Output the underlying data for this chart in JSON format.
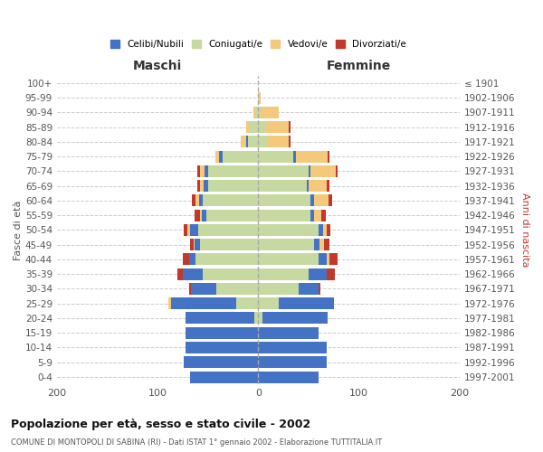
{
  "age_groups": [
    "0-4",
    "5-9",
    "10-14",
    "15-19",
    "20-24",
    "25-29",
    "30-34",
    "35-39",
    "40-44",
    "45-49",
    "50-54",
    "55-59",
    "60-64",
    "65-69",
    "70-74",
    "75-79",
    "80-84",
    "85-89",
    "90-94",
    "95-99",
    "100+"
  ],
  "birth_years": [
    "1997-2001",
    "1992-1996",
    "1987-1991",
    "1982-1986",
    "1977-1981",
    "1972-1976",
    "1967-1971",
    "1962-1966",
    "1957-1961",
    "1952-1956",
    "1947-1951",
    "1942-1946",
    "1937-1941",
    "1932-1936",
    "1927-1931",
    "1922-1926",
    "1917-1921",
    "1912-1916",
    "1907-1911",
    "1902-1906",
    "≤ 1901"
  ],
  "maschi": {
    "coniugati": [
      0,
      0,
      0,
      0,
      4,
      22,
      42,
      55,
      62,
      58,
      60,
      52,
      55,
      50,
      50,
      35,
      10,
      8,
      2,
      0,
      0
    ],
    "celibi": [
      68,
      74,
      72,
      72,
      68,
      65,
      25,
      20,
      7,
      5,
      8,
      4,
      4,
      4,
      3,
      4,
      2,
      0,
      0,
      0,
      0
    ],
    "vedovi": [
      0,
      0,
      0,
      0,
      0,
      2,
      0,
      0,
      0,
      1,
      2,
      2,
      3,
      4,
      5,
      4,
      5,
      4,
      3,
      0,
      0
    ],
    "divorziati": [
      0,
      0,
      0,
      0,
      0,
      0,
      2,
      5,
      6,
      4,
      4,
      5,
      4,
      3,
      3,
      0,
      0,
      0,
      0,
      0,
      0
    ]
  },
  "femmine": {
    "coniugate": [
      0,
      0,
      0,
      0,
      4,
      20,
      40,
      50,
      60,
      55,
      60,
      52,
      52,
      48,
      50,
      35,
      10,
      8,
      2,
      0,
      0
    ],
    "nubili": [
      60,
      68,
      68,
      60,
      65,
      55,
      20,
      18,
      8,
      6,
      4,
      3,
      3,
      2,
      2,
      2,
      0,
      0,
      0,
      0,
      0
    ],
    "vedove": [
      0,
      0,
      0,
      0,
      0,
      0,
      0,
      0,
      3,
      4,
      4,
      8,
      15,
      18,
      25,
      32,
      20,
      22,
      18,
      2,
      0
    ],
    "divorziate": [
      0,
      0,
      0,
      0,
      0,
      0,
      2,
      8,
      8,
      6,
      4,
      4,
      3,
      3,
      2,
      2,
      2,
      2,
      0,
      0,
      0
    ]
  },
  "colors": {
    "celibi": "#4472C4",
    "coniugati": "#c5d9a0",
    "vedovi": "#f5c97c",
    "divorziati": "#c0392b"
  },
  "title": "Popolazione per età, sesso e stato civile - 2002",
  "subtitle": "COMUNE DI MONTOPOLI DI SABINA (RI) - Dati ISTAT 1° gennaio 2002 - Elaborazione TUTTITALIA.IT",
  "xlabel_left": "Maschi",
  "xlabel_right": "Femmine",
  "ylabel_left": "Fasce di età",
  "ylabel_right": "Anni di nascita",
  "xlim": 200,
  "legend_labels": [
    "Celibi/Nubili",
    "Coniugati/e",
    "Vedovi/e",
    "Divorziati/e"
  ]
}
